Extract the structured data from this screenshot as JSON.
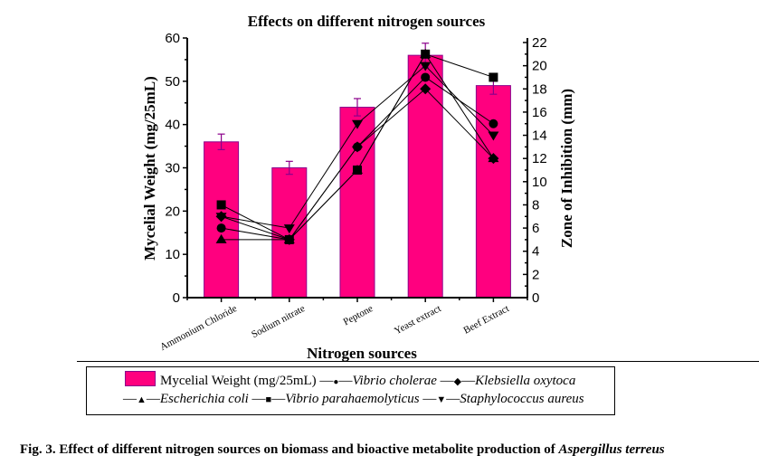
{
  "chart_data": {
    "type": "bar",
    "title": "Effects on different nitrogen sources",
    "xlabel": "Nitrogen sources",
    "ylabel": "Mycelial Weight (mg/25mL)",
    "y2label": "Zone of Inhibition (mm)",
    "ylim": [
      0,
      60
    ],
    "y2lim": [
      0,
      22
    ],
    "yticks": [
      0,
      10,
      20,
      30,
      40,
      50,
      60
    ],
    "y2ticks": [
      0,
      2,
      4,
      6,
      8,
      10,
      12,
      14,
      16,
      18,
      20,
      22
    ],
    "categories": [
      "Ammonium Chloride",
      "Sodium nitrate",
      "Peptone",
      "Yeast extract",
      "Beef Extract"
    ],
    "bar_series": {
      "name": "Mycelial Weight (mg/25mL)",
      "values": [
        36,
        30,
        44,
        56,
        49
      ],
      "errors": [
        1.8,
        1.5,
        2.0,
        2.8,
        2.0
      ],
      "color": "#ff007f",
      "edge_color": "#8b008b"
    },
    "line_series": [
      {
        "name": "Vibrio cholerae",
        "marker": "circle",
        "axis": "right",
        "values": [
          6,
          5,
          13,
          19,
          15
        ]
      },
      {
        "name": "Klebsiella oxytoca",
        "marker": "diamond",
        "axis": "right",
        "values": [
          7,
          5,
          13,
          18,
          12
        ]
      },
      {
        "name": "Escherichia coli",
        "marker": "triangle-up",
        "axis": "right",
        "values": [
          5,
          5,
          11,
          21,
          12
        ]
      },
      {
        "name": "Vibrio parahaemolyticus",
        "marker": "square",
        "axis": "right",
        "values": [
          8,
          5,
          11,
          21,
          19
        ]
      },
      {
        "name": "Staphylococcus aureus",
        "marker": "triangle-down",
        "axis": "right",
        "values": [
          7,
          6,
          15,
          20,
          14
        ]
      }
    ],
    "legend_position": "bottom",
    "grid": false
  },
  "legend": {
    "bar_label": "Mycelial Weight (mg/25mL)",
    "dash": "—",
    "items": [
      {
        "label": "Vibrio cholerae",
        "glyph": "●"
      },
      {
        "label": "Klebsiella oxytoca",
        "glyph": "◆"
      },
      {
        "label": "Escherichia coli",
        "glyph": "▲"
      },
      {
        "label": "Vibrio parahaemolyticus",
        "glyph": "■"
      },
      {
        "label": "Staphylococcus aureus",
        "glyph": "▼"
      }
    ]
  },
  "caption": {
    "prefix": "Fig. 3. Effect of different nitrogen sources on biomass and bioactive metabolite production of ",
    "species": "Aspergillus terreus"
  }
}
